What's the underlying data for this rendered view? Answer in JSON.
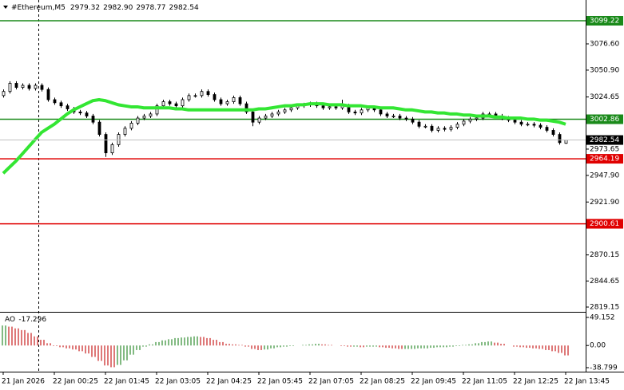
{
  "chart_data": {
    "type": "candlestick",
    "symbol": "#Ethereum,M5",
    "last_bar_labels": [
      "2979.32",
      "2982.90",
      "2978.77",
      "2982.54"
    ],
    "candles": [
      [
        3026,
        3032,
        3024,
        3030
      ],
      [
        3030,
        3040,
        3028,
        3038
      ],
      [
        3038,
        3040,
        3032,
        3034
      ],
      [
        3034,
        3038,
        3032,
        3036
      ],
      [
        3036,
        3038,
        3031,
        3033
      ],
      [
        3033,
        3038,
        3031,
        3036
      ],
      [
        3036,
        3038,
        3030,
        3032
      ],
      [
        3032,
        3034,
        3020,
        3022
      ],
      [
        3022,
        3024,
        3017,
        3019
      ],
      [
        3019,
        3021,
        3014,
        3016
      ],
      [
        3016,
        3018,
        3011,
        3013
      ],
      [
        3013,
        3015,
        3008,
        3010
      ],
      [
        3010,
        3012,
        3007,
        3009
      ],
      [
        3009,
        3011,
        3004,
        3006
      ],
      [
        3006,
        3008,
        2998,
        3000
      ],
      [
        3000,
        3002,
        2986,
        2988
      ],
      [
        2988,
        2990,
        2966,
        2970
      ],
      [
        2970,
        2980,
        2968,
        2978
      ],
      [
        2978,
        2990,
        2976,
        2988
      ],
      [
        2988,
        2996,
        2986,
        2994
      ],
      [
        2994,
        3001,
        2992,
        2999
      ],
      [
        2999,
        3006,
        2997,
        3004
      ],
      [
        3004,
        3008,
        3002,
        3006
      ],
      [
        3006,
        3010,
        3004,
        3008
      ],
      [
        3008,
        3018,
        3006,
        3016
      ],
      [
        3016,
        3022,
        3014,
        3020
      ],
      [
        3020,
        3022,
        3016,
        3018
      ],
      [
        3018,
        3020,
        3014,
        3016
      ],
      [
        3016,
        3024,
        3014,
        3022
      ],
      [
        3022,
        3028,
        3020,
        3026
      ],
      [
        3026,
        3028,
        3024,
        3026
      ],
      [
        3026,
        3032,
        3024,
        3030
      ],
      [
        3030,
        3032,
        3025,
        3027
      ],
      [
        3027,
        3029,
        3020,
        3022
      ],
      [
        3022,
        3024,
        3016,
        3018
      ],
      [
        3018,
        3022,
        3016,
        3020
      ],
      [
        3020,
        3026,
        3018,
        3024
      ],
      [
        3024,
        3026,
        3016,
        3018
      ],
      [
        3018,
        3020,
        3008,
        3010
      ],
      [
        3010,
        3012,
        2996,
        3000
      ],
      [
        3000,
        3006,
        2998,
        3004
      ],
      [
        3004,
        3008,
        3002,
        3006
      ],
      [
        3006,
        3010,
        3004,
        3008
      ],
      [
        3008,
        3012,
        3006,
        3010
      ],
      [
        3010,
        3014,
        3008,
        3012
      ],
      [
        3012,
        3016,
        3010,
        3014
      ],
      [
        3014,
        3018,
        3012,
        3016
      ],
      [
        3016,
        3019,
        3014,
        3017
      ],
      [
        3017,
        3020,
        3015,
        3018
      ],
      [
        3018,
        3020,
        3014,
        3016
      ],
      [
        3016,
        3018,
        3012,
        3014
      ],
      [
        3014,
        3017,
        3012,
        3015
      ],
      [
        3015,
        3017,
        3012,
        3014
      ],
      [
        3014,
        3022,
        3012,
        3016
      ],
      [
        3016,
        3018,
        3008,
        3010
      ],
      [
        3010,
        3012,
        3007,
        3009
      ],
      [
        3009,
        3014,
        3007,
        3012
      ],
      [
        3012,
        3016,
        3010,
        3014
      ],
      [
        3014,
        3016,
        3010,
        3012
      ],
      [
        3012,
        3014,
        3006,
        3008
      ],
      [
        3008,
        3010,
        3004,
        3006
      ],
      [
        3006,
        3008,
        3004,
        3006
      ],
      [
        3006,
        3008,
        3002,
        3004
      ],
      [
        3004,
        3006,
        3001,
        3003
      ],
      [
        3003,
        3005,
        2998,
        3000
      ],
      [
        3000,
        3002,
        2994,
        2996
      ],
      [
        2996,
        2998,
        2994,
        2996
      ],
      [
        2996,
        2998,
        2990,
        2992
      ],
      [
        2992,
        2996,
        2990,
        2994
      ],
      [
        2994,
        2996,
        2991,
        2993
      ],
      [
        2993,
        2997,
        2991,
        2995
      ],
      [
        2995,
        3000,
        2993,
        2998
      ],
      [
        2998,
        3003,
        2996,
        3001
      ],
      [
        3001,
        3005,
        2999,
        3003
      ],
      [
        3003,
        3006,
        3001,
        3004
      ],
      [
        3004,
        3010,
        3002,
        3008
      ],
      [
        3008,
        3010,
        3006,
        3008
      ],
      [
        3008,
        3010,
        3004,
        3006
      ],
      [
        3006,
        3008,
        3002,
        3004
      ],
      [
        3004,
        3006,
        3000,
        3002
      ],
      [
        3002,
        3004,
        2998,
        3000
      ],
      [
        3000,
        3002,
        2996,
        2998
      ],
      [
        2998,
        3000,
        2996,
        2998
      ],
      [
        2998,
        3000,
        2995,
        2997
      ],
      [
        2997,
        2999,
        2993,
        2995
      ],
      [
        2995,
        2997,
        2990,
        2992
      ],
      [
        2992,
        2994,
        2986,
        2988
      ],
      [
        2988,
        2990,
        2978,
        2980
      ],
      [
        2979.32,
        2982.9,
        2978.77,
        2982.54
      ]
    ],
    "ma": {
      "color": "#33e633",
      "values": [
        2950,
        2956,
        2962,
        2969,
        2976,
        2983,
        2990,
        2994,
        2998,
        3003,
        3008,
        3012,
        3015,
        3018,
        3021,
        3022,
        3021,
        3019,
        3017,
        3016,
        3015,
        3015,
        3014,
        3014,
        3014,
        3014,
        3014,
        3013,
        3013,
        3012,
        3012,
        3012,
        3012,
        3012,
        3012,
        3012,
        3012,
        3012,
        3012,
        3012,
        3013,
        3013,
        3014,
        3015,
        3016,
        3016,
        3017,
        3017,
        3018,
        3018,
        3018,
        3017,
        3017,
        3017,
        3016,
        3016,
        3016,
        3015,
        3015,
        3014,
        3014,
        3014,
        3013,
        3012,
        3012,
        3011,
        3010,
        3010,
        3009,
        3009,
        3008,
        3008,
        3007,
        3007,
        3006,
        3006,
        3006,
        3005,
        3005,
        3004,
        3004,
        3004,
        3003,
        3003,
        3002,
        3002,
        3001,
        3000,
        2998
      ]
    },
    "x": [
      "21 Jan 2026",
      null,
      null,
      null,
      null,
      null,
      null,
      null,
      "22 Jan 00:25",
      null,
      null,
      null,
      null,
      null,
      null,
      null,
      "22 Jan 01:45",
      null,
      null,
      null,
      null,
      null,
      null,
      null,
      "22 Jan 03:05",
      null,
      null,
      null,
      null,
      null,
      null,
      null,
      "22 Jan 04:25",
      null,
      null,
      null,
      null,
      null,
      null,
      null,
      "22 Jan 05:45",
      null,
      null,
      null,
      null,
      null,
      null,
      null,
      "22 Jan 07:05",
      null,
      null,
      null,
      null,
      null,
      null,
      null,
      "22 Jan 08:25",
      null,
      null,
      null,
      null,
      null,
      null,
      null,
      "22 Jan 09:45",
      null,
      null,
      null,
      null,
      null,
      null,
      null,
      "22 Jan 11:05",
      null,
      null,
      null,
      null,
      null,
      null,
      null,
      "22 Jan 12:25",
      null,
      null,
      null,
      null,
      null,
      null,
      null,
      "22 Jan 13:45"
    ],
    "ylim": [
      2815.25,
      3119.5
    ],
    "yticks": [
      {
        "value": 3076.6,
        "label": "3076.60"
      },
      {
        "value": 3050.9,
        "label": "3050.90"
      },
      3024.65,
      2973.65,
      {
        "value": 2947.9,
        "label": "2947.90"
      },
      {
        "value": 2921.9,
        "label": "2921.90"
      },
      2870.15,
      2844.65,
      2819.15
    ],
    "levels": [
      {
        "value": 3099.22,
        "color": "#1a8a1a"
      },
      {
        "value": 3002.86,
        "color": "#1a8a1a"
      },
      {
        "value": 2964.19,
        "color": "#e00000"
      },
      {
        "value": 2900.61,
        "color": "#e00000"
      }
    ],
    "ao": {
      "name": "AO",
      "up_color": "#2e8b2e",
      "down_color": "#c81e1e",
      "values": [
        35,
        33,
        30,
        27,
        22,
        16,
        10,
        4,
        -1,
        -3,
        -5,
        -7,
        -10,
        -14,
        -20,
        -27,
        -35,
        -38,
        -34,
        -26,
        -16,
        -8,
        -2,
        2,
        6,
        9,
        11,
        13,
        14,
        15,
        16,
        15,
        13,
        10,
        6,
        3,
        2,
        1,
        -2,
        -6,
        -8,
        -7,
        -5,
        -3,
        -2,
        -1,
        0,
        1,
        2,
        3,
        2,
        1,
        0,
        -1,
        -2,
        -2,
        -3,
        -2,
        -2,
        -3,
        -4,
        -5,
        -6,
        -6,
        -6,
        -5,
        -5,
        -4,
        -3,
        -3,
        -2,
        -1,
        1,
        2,
        4,
        6,
        7,
        5,
        3,
        0,
        -2,
        -3,
        -4,
        -5,
        -6,
        -8,
        -10,
        -13,
        -17.296
      ],
      "ylim": [
        -45.78,
        56.13
      ],
      "yticks": [
        49.152,
        {
          "value": 0,
          "label": "0.00"
        },
        -38.799
      ]
    }
  }
}
